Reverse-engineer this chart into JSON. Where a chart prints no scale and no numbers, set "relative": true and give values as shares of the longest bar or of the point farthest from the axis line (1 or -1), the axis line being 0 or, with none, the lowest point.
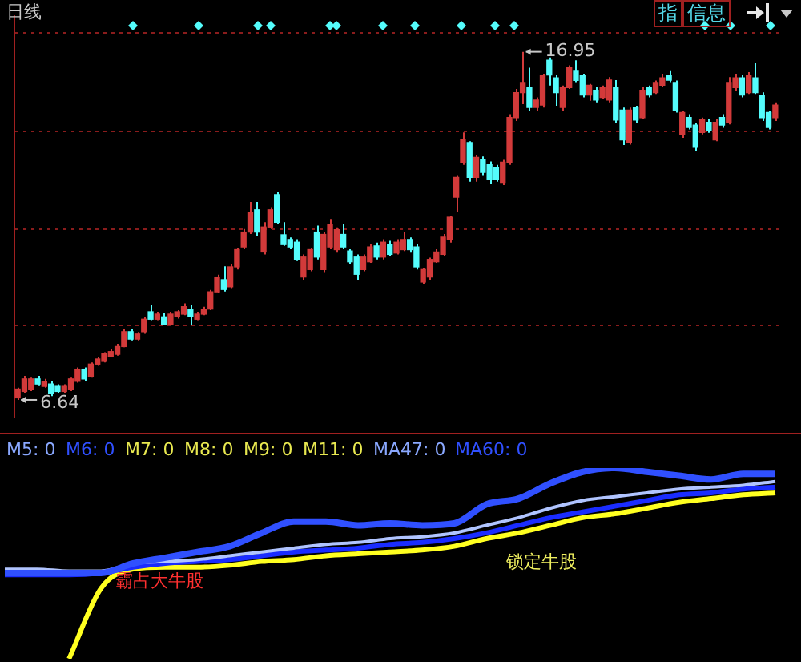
{
  "chart_data": [
    {
      "type": "candlestick",
      "grid": "y",
      "ylim": [
        6.15,
        18.0
      ],
      "yticks": [
        {
          "value": 8.85,
          "label": null
        },
        {
          "value": 11.7,
          "label": null
        },
        {
          "value": 14.6,
          "label": null
        },
        {
          "value": 17.5,
          "label": null
        }
      ],
      "annotations": [
        "日线",
        "指",
        "信息",
        "16.95",
        "6.64"
      ],
      "categories": [
        null,
        null,
        null,
        null,
        null,
        null,
        null,
        null,
        null,
        null,
        null,
        null,
        null,
        null,
        null,
        null,
        null,
        null,
        null,
        null,
        null,
        null,
        null,
        null,
        null,
        null,
        null,
        null,
        null,
        null,
        null,
        null,
        null,
        null,
        null,
        null,
        null,
        null,
        null,
        null,
        null,
        null,
        null,
        null,
        null,
        null,
        null,
        null,
        null,
        null,
        null,
        null,
        null,
        null,
        null,
        null,
        null,
        null,
        null,
        null,
        null,
        null,
        null,
        null,
        null,
        null,
        null,
        null,
        null,
        null,
        null,
        null,
        null,
        null,
        null,
        null,
        null,
        null,
        null,
        null,
        null,
        null,
        null,
        null,
        null,
        null,
        null,
        null,
        null,
        null,
        null,
        null,
        null,
        null,
        null,
        null,
        null,
        null,
        null,
        null,
        null,
        null,
        null,
        null,
        null,
        null,
        null,
        null,
        null,
        null,
        null,
        null,
        null,
        null,
        null
      ],
      "ohlc": [
        [
          6.7,
          7.0,
          6.64,
          6.96
        ],
        [
          6.89,
          7.35,
          6.85,
          7.26
        ],
        [
          6.96,
          7.3,
          6.9,
          7.26
        ],
        [
          7.26,
          7.35,
          7.05,
          7.11
        ],
        [
          7.04,
          7.26,
          7.0,
          7.19
        ],
        [
          7.11,
          7.2,
          6.75,
          6.82
        ],
        [
          7.04,
          7.1,
          6.85,
          6.89
        ],
        [
          6.89,
          7.1,
          6.85,
          7.04
        ],
        [
          6.96,
          7.3,
          6.9,
          7.26
        ],
        [
          7.19,
          7.6,
          7.15,
          7.55
        ],
        [
          7.55,
          7.6,
          7.2,
          7.26
        ],
        [
          7.33,
          7.75,
          7.3,
          7.7
        ],
        [
          7.7,
          7.9,
          7.65,
          7.85
        ],
        [
          7.78,
          8.05,
          7.75,
          8.0
        ],
        [
          7.92,
          8.15,
          7.9,
          8.07
        ],
        [
          7.99,
          8.3,
          7.95,
          8.22
        ],
        [
          8.22,
          8.75,
          8.2,
          8.66
        ],
        [
          8.66,
          8.75,
          8.4,
          8.44
        ],
        [
          8.44,
          8.65,
          8.4,
          8.59
        ],
        [
          8.66,
          9.1,
          8.6,
          9.03
        ],
        [
          9.25,
          9.45,
          9.0,
          9.03
        ],
        [
          9.03,
          9.25,
          9.0,
          9.18
        ],
        [
          9.1,
          9.2,
          8.85,
          8.88
        ],
        [
          8.88,
          9.25,
          8.85,
          9.18
        ],
        [
          9.1,
          9.3,
          9.05,
          9.25
        ],
        [
          9.18,
          9.5,
          9.15,
          9.4
        ],
        [
          9.33,
          9.45,
          8.85,
          9.1
        ],
        [
          9.03,
          9.25,
          9.0,
          9.18
        ],
        [
          9.18,
          9.4,
          9.15,
          9.33
        ],
        [
          9.33,
          9.9,
          9.3,
          9.84
        ],
        [
          9.84,
          10.35,
          9.8,
          10.28
        ],
        [
          10.2,
          10.6,
          9.85,
          9.91
        ],
        [
          9.99,
          10.65,
          9.95,
          10.58
        ],
        [
          10.58,
          11.15,
          10.5,
          11.09
        ],
        [
          11.17,
          11.7,
          11.1,
          11.61
        ],
        [
          11.61,
          12.5,
          11.55,
          12.2
        ],
        [
          12.27,
          12.5,
          11.5,
          11.61
        ],
        [
          11.02,
          11.9,
          10.95,
          11.76
        ],
        [
          11.76,
          12.35,
          11.7,
          12.27
        ],
        [
          12.72,
          12.79,
          11.85,
          11.9
        ],
        [
          11.53,
          11.9,
          11.2,
          11.24
        ],
        [
          11.39,
          11.45,
          11.1,
          11.17
        ],
        [
          11.31,
          11.4,
          10.75,
          10.8
        ],
        [
          10.28,
          10.95,
          10.2,
          10.87
        ],
        [
          10.5,
          11.15,
          10.45,
          11.09
        ],
        [
          11.61,
          11.8,
          10.8,
          10.87
        ],
        [
          10.5,
          11.6,
          10.4,
          11.54
        ],
        [
          11.17,
          12.0,
          11.1,
          11.83
        ],
        [
          11.09,
          11.75,
          11.0,
          11.68
        ],
        [
          11.54,
          11.85,
          11.1,
          11.17
        ],
        [
          11.05,
          11.1,
          10.65,
          10.73
        ],
        [
          10.87,
          10.95,
          10.2,
          10.36
        ],
        [
          10.5,
          10.95,
          10.45,
          10.87
        ],
        [
          10.73,
          11.25,
          10.7,
          11.17
        ],
        [
          11.2,
          11.3,
          10.8,
          10.87
        ],
        [
          10.87,
          11.4,
          10.8,
          11.31
        ],
        [
          11.24,
          11.35,
          10.9,
          10.95
        ],
        [
          10.99,
          11.4,
          10.95,
          11.31
        ],
        [
          11.09,
          11.6,
          11.05,
          11.39
        ],
        [
          11.39,
          11.45,
          11.0,
          11.09
        ],
        [
          11.17,
          11.25,
          10.5,
          10.58
        ],
        [
          10.13,
          10.55,
          10.08,
          10.5
        ],
        [
          10.28,
          10.85,
          10.2,
          10.8
        ],
        [
          10.73,
          11.1,
          10.7,
          11.02
        ],
        [
          10.95,
          11.55,
          10.9,
          11.46
        ],
        [
          11.39,
          12.1,
          11.3,
          12.05
        ],
        [
          12.64,
          13.3,
          12.2,
          13.23
        ],
        [
          13.68,
          14.56,
          13.6,
          14.34
        ],
        [
          14.26,
          14.3,
          13.1,
          13.23
        ],
        [
          13.23,
          13.9,
          13.1,
          13.82
        ],
        [
          13.75,
          13.85,
          13.3,
          13.38
        ],
        [
          13.6,
          13.7,
          13.05,
          13.16
        ],
        [
          13.53,
          13.6,
          13.1,
          13.16
        ],
        [
          13.08,
          13.75,
          13.0,
          13.68
        ],
        [
          13.68,
          15.1,
          13.6,
          15.0
        ],
        [
          15.0,
          15.85,
          14.9,
          15.74
        ],
        [
          15.74,
          16.95,
          15.4,
          16.04
        ],
        [
          15.89,
          16.48,
          15.2,
          15.3
        ],
        [
          15.3,
          15.6,
          15.2,
          15.52
        ],
        [
          15.37,
          16.3,
          15.3,
          16.26
        ],
        [
          16.7,
          16.78,
          15.95,
          16.26
        ],
        [
          16.18,
          16.25,
          15.35,
          15.74
        ],
        [
          15.3,
          15.95,
          15.2,
          15.89
        ],
        [
          15.89,
          16.55,
          15.85,
          16.48
        ],
        [
          16.4,
          16.7,
          16.05,
          16.1
        ],
        [
          16.26,
          16.3,
          15.6,
          15.67
        ],
        [
          15.67,
          16.0,
          15.5,
          15.96
        ],
        [
          15.81,
          15.9,
          15.45,
          15.52
        ],
        [
          15.6,
          15.95,
          15.55,
          15.89
        ],
        [
          15.52,
          16.2,
          15.45,
          16.11
        ],
        [
          15.89,
          16.11,
          14.85,
          14.93
        ],
        [
          15.22,
          15.3,
          14.19,
          14.34
        ],
        [
          14.26,
          15.3,
          14.2,
          15.22
        ],
        [
          15.3,
          15.35,
          14.85,
          14.93
        ],
        [
          15.0,
          15.9,
          14.95,
          15.81
        ],
        [
          15.89,
          15.95,
          15.6,
          15.67
        ],
        [
          15.74,
          16.1,
          15.7,
          16.04
        ],
        [
          15.96,
          16.3,
          15.9,
          16.18
        ],
        [
          16.26,
          16.4,
          16.05,
          16.11
        ],
        [
          16.04,
          16.1,
          15.15,
          15.22
        ],
        [
          14.49,
          15.2,
          14.4,
          15.15
        ],
        [
          15.0,
          15.1,
          14.65,
          14.71
        ],
        [
          14.78,
          14.85,
          14.0,
          14.12
        ],
        [
          14.56,
          15.0,
          14.5,
          14.93
        ],
        [
          14.86,
          14.95,
          14.55,
          14.63
        ],
        [
          14.34,
          14.95,
          14.3,
          14.86
        ],
        [
          15.0,
          15.1,
          14.7,
          14.78
        ],
        [
          14.86,
          16.2,
          14.8,
          16.04
        ],
        [
          15.89,
          16.3,
          15.8,
          16.18
        ],
        [
          16.18,
          16.25,
          15.6,
          15.67
        ],
        [
          15.74,
          16.35,
          15.7,
          16.26
        ],
        [
          16.18,
          16.63,
          15.7,
          15.74
        ],
        [
          15.67,
          15.75,
          14.9,
          15.0
        ],
        [
          15.15,
          15.2,
          14.65,
          14.71
        ],
        [
          15.0,
          15.45,
          14.9,
          15.37
        ]
      ]
    },
    {
      "type": "line",
      "relative": true,
      "annotations": [
        "M5: 0",
        "M6: 0",
        "M7: 0",
        "M8: 0",
        "M9: 0",
        "M11: 0",
        "MA47: 0",
        "MA60: 0",
        "霸占大牛股",
        "锁定牛股"
      ],
      "categories": [
        null,
        null,
        null,
        null,
        null,
        null,
        null,
        null,
        null,
        null,
        null,
        null,
        null,
        null,
        null,
        null,
        null,
        null,
        null,
        null,
        null,
        null,
        null,
        null,
        null
      ],
      "series": [
        {
          "color": "#3050ff",
          "values": [
            0.45,
            0.45,
            0.45,
            0.45,
            0.5,
            0.53,
            0.56,
            0.59,
            0.66,
            0.72,
            0.72,
            0.7,
            0.71,
            0.7,
            0.71,
            0.81,
            0.84,
            0.92,
            0.98,
            1.0,
            0.98,
            0.96,
            0.94,
            0.97,
            0.97
          ]
        },
        {
          "color": "#b0c4ff",
          "values": [
            0.47,
            0.47,
            0.46,
            0.46,
            0.5,
            0.51,
            0.52,
            0.54,
            0.56,
            0.58,
            0.6,
            0.61,
            0.63,
            0.64,
            0.66,
            0.7,
            0.74,
            0.79,
            0.83,
            0.85,
            0.87,
            0.89,
            0.9,
            0.91,
            0.93
          ]
        },
        {
          "color": "#1a2cff",
          "values": [
            0.44,
            0.44,
            0.44,
            0.45,
            0.48,
            0.5,
            0.51,
            0.52,
            0.54,
            0.56,
            0.57,
            0.58,
            0.6,
            0.61,
            0.63,
            0.66,
            0.7,
            0.74,
            0.77,
            0.8,
            0.83,
            0.86,
            0.87,
            0.89,
            0.9
          ]
        },
        {
          "color": "#ffff20",
          "values": [
            null,
            null,
            0,
            0.37,
            0.47,
            0.48,
            0.48,
            0.49,
            0.51,
            0.52,
            0.54,
            0.55,
            0.56,
            0.57,
            0.59,
            0.63,
            0.66,
            0.7,
            0.74,
            0.76,
            0.79,
            0.82,
            0.84,
            0.86,
            0.87
          ]
        }
      ]
    }
  ]
}
